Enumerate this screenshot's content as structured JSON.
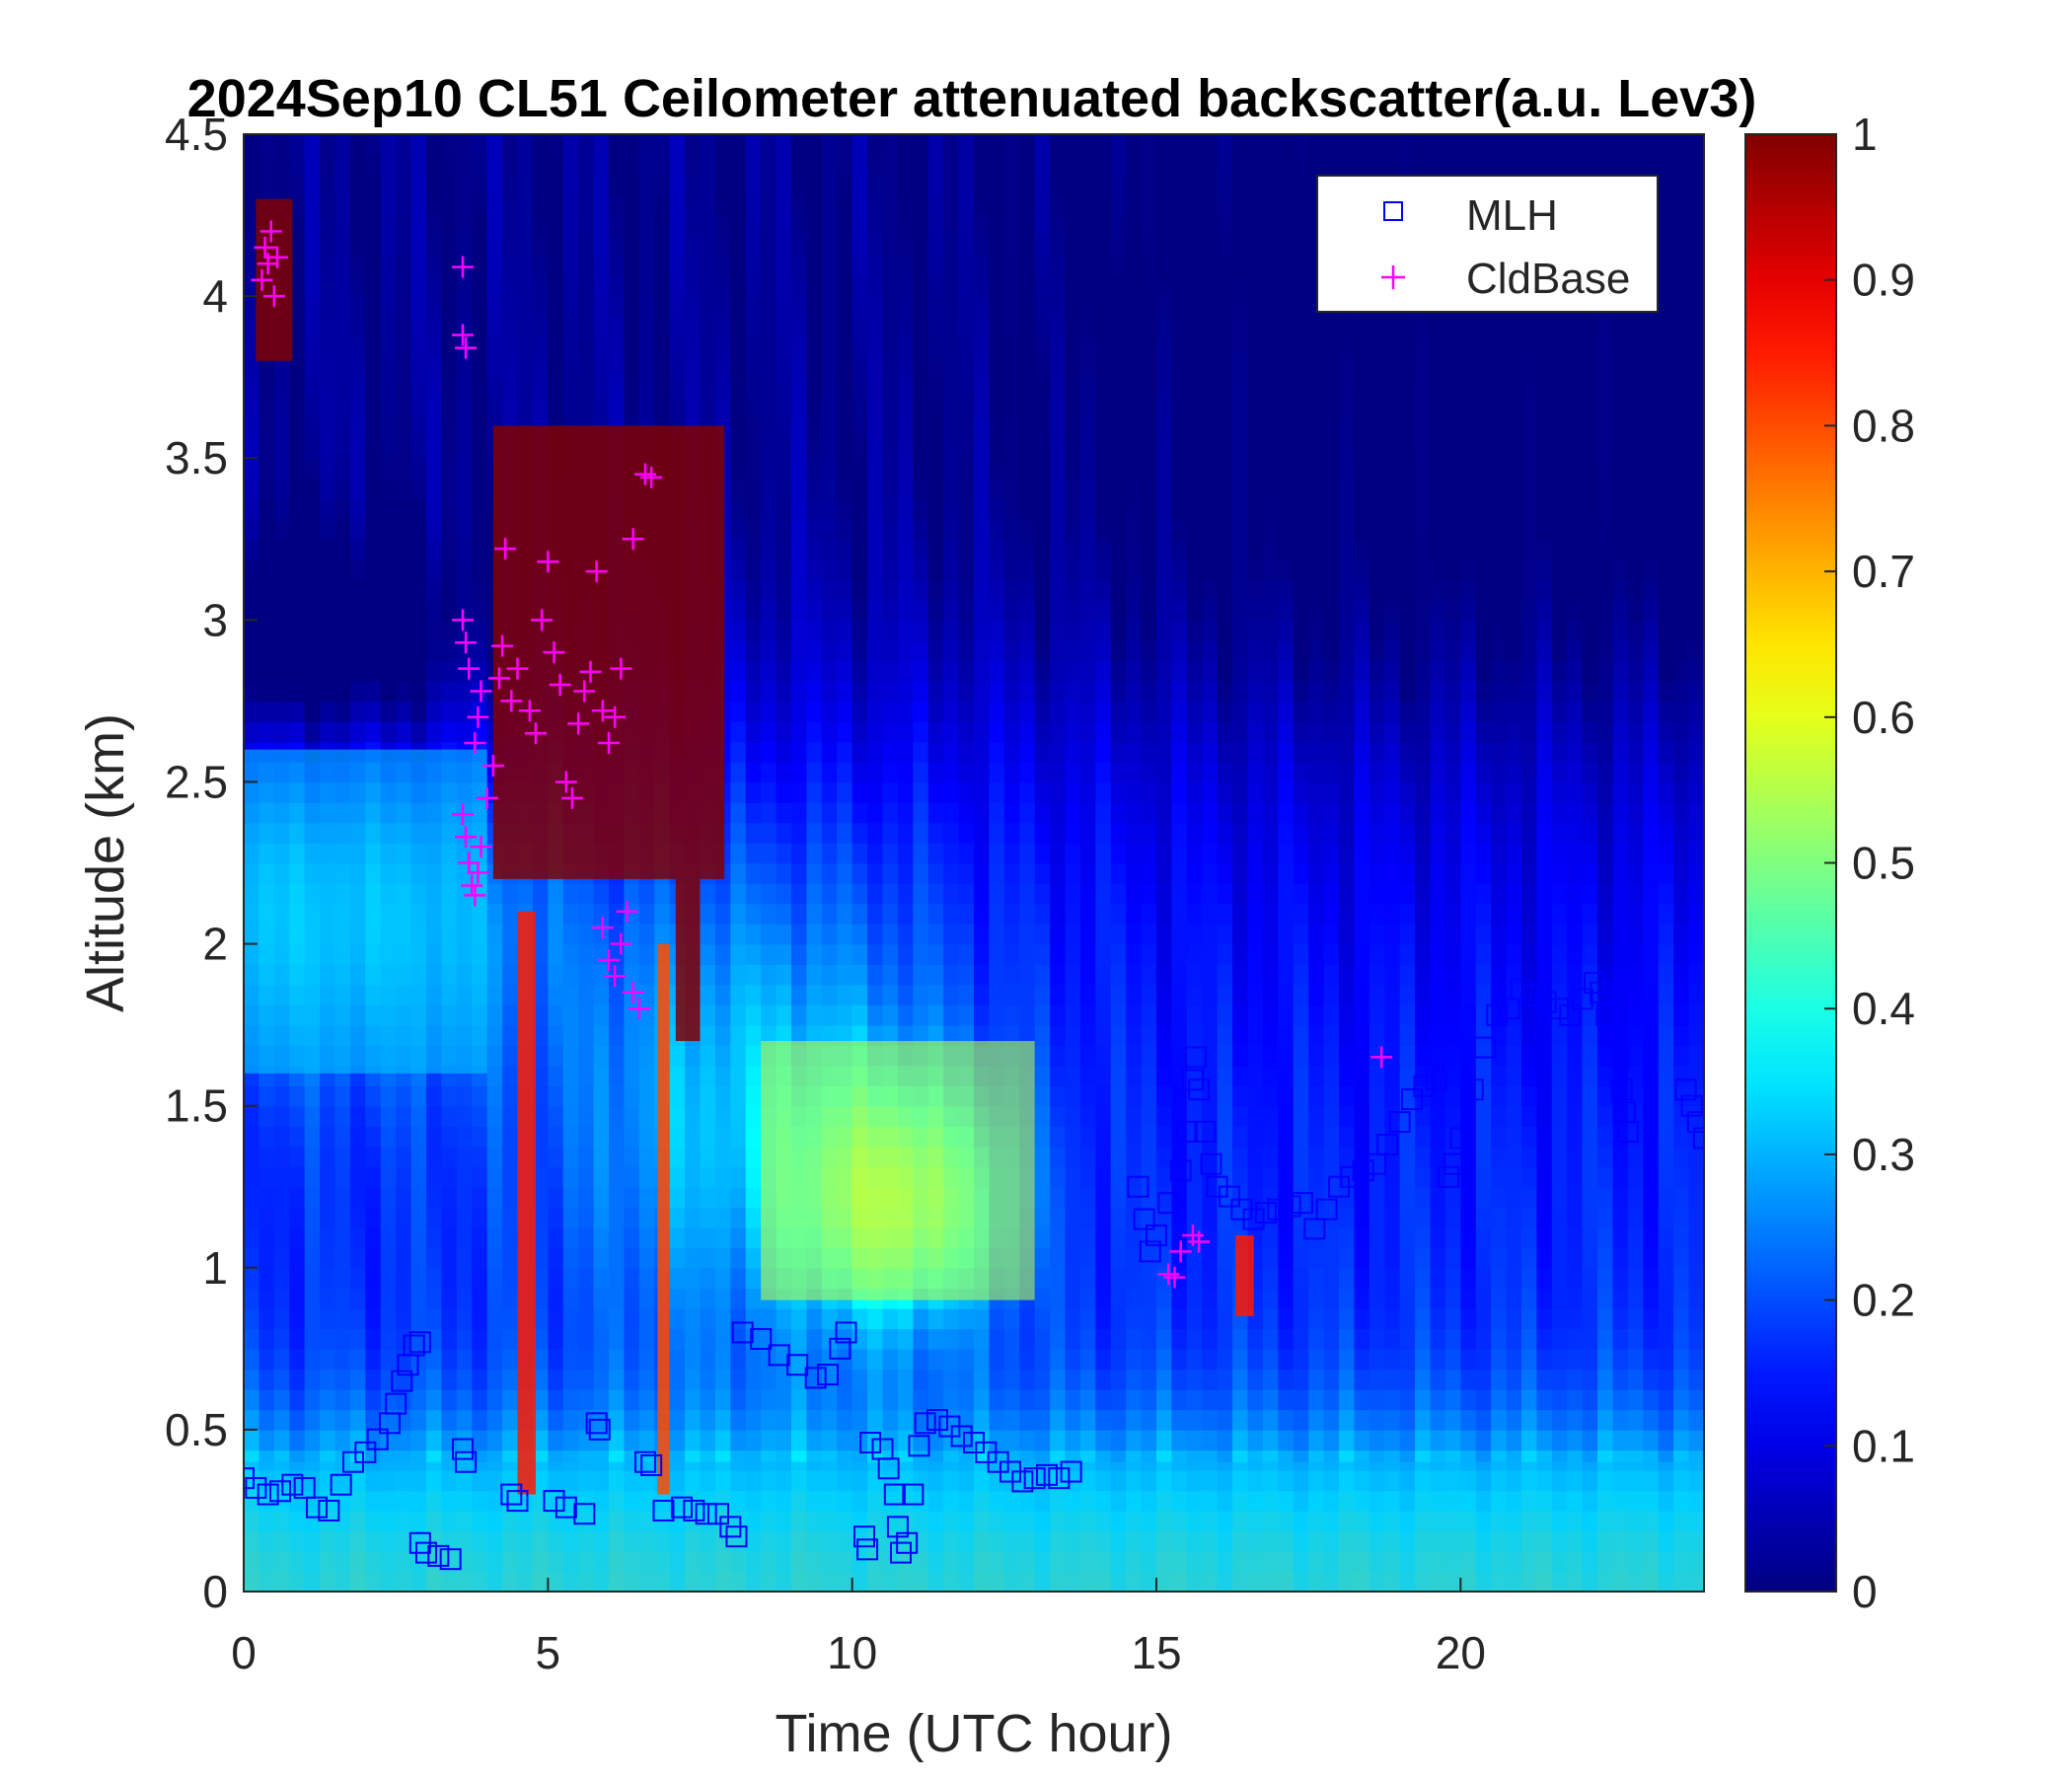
{
  "chart_data": {
    "type": "heatmap",
    "title": "2024Sep10 CL51 Ceilometer attenuated backscatter(a.u. Lev3)",
    "xlabel": "Time (UTC hour)",
    "ylabel": "Altitude (km)",
    "xlim": [
      0,
      24
    ],
    "ylim": [
      0,
      4.5
    ],
    "x_ticks": [
      0,
      5,
      10,
      15,
      20
    ],
    "x_tick_labels": [
      "0",
      "5",
      "10",
      "15",
      "20"
    ],
    "y_ticks": [
      0,
      0.5,
      1,
      1.5,
      2,
      2.5,
      3,
      3.5,
      4,
      4.5
    ],
    "y_tick_labels": [
      "0",
      "0.5",
      "1",
      "1.5",
      "2",
      "2.5",
      "3",
      "3.5",
      "4",
      "4.5"
    ],
    "colorbar": {
      "colormap": "jet",
      "clim": [
        0,
        1
      ],
      "ticks": [
        0,
        0.1,
        0.2,
        0.3,
        0.4,
        0.5,
        0.6,
        0.7,
        0.8,
        0.9,
        1
      ],
      "tick_labels": [
        "0",
        "0.1",
        "0.2",
        "0.3",
        "0.4",
        "0.5",
        "0.6",
        "0.7",
        "0.8",
        "0.9",
        "1"
      ]
    },
    "legend": {
      "position": "top-right",
      "entries": [
        {
          "name": "MLH",
          "marker": "square",
          "color": "#0000ff"
        },
        {
          "name": "CldBase",
          "marker": "plus",
          "color": "#ff00ff"
        }
      ]
    },
    "grid": false,
    "backscatter_features": [
      {
        "feature": "surface layer",
        "x": [
          0,
          24
        ],
        "y": [
          0,
          0.4
        ],
        "value": 0.3
      },
      {
        "feature": "aerosol layer",
        "x": [
          0,
          4
        ],
        "y": [
          1.6,
          2.6
        ],
        "value": 0.32
      },
      {
        "feature": "aerosol maximum",
        "x": [
          8.5,
          13
        ],
        "y": [
          0.9,
          1.7
        ],
        "value": 0.55
      },
      {
        "feature": "cloud",
        "x": [
          0.2,
          0.8
        ],
        "y": [
          3.8,
          4.3
        ],
        "value": 1.0
      },
      {
        "feature": "cloud",
        "x": [
          4.1,
          7.9
        ],
        "y": [
          2.2,
          3.6
        ],
        "value": 1.0
      },
      {
        "feature": "cloud",
        "x": [
          7.1,
          7.5
        ],
        "y": [
          1.7,
          2.2
        ],
        "value": 1.0
      },
      {
        "feature": "precipitation streak",
        "x": [
          4.5,
          4.8
        ],
        "y": [
          0.3,
          2.1
        ],
        "value": 0.85
      },
      {
        "feature": "precipitation streak",
        "x": [
          6.8,
          7.0
        ],
        "y": [
          0.3,
          2.0
        ],
        "value": 0.8
      },
      {
        "feature": "cloud",
        "x": [
          16.3,
          16.6
        ],
        "y": [
          0.85,
          1.1
        ],
        "value": 0.85
      }
    ],
    "series": [
      {
        "name": "MLH",
        "marker": "square",
        "color": "#0000ff",
        "points": [
          [
            0.0,
            0.35
          ],
          [
            0.2,
            0.32
          ],
          [
            0.4,
            0.3
          ],
          [
            0.6,
            0.31
          ],
          [
            0.8,
            0.33
          ],
          [
            1.0,
            0.32
          ],
          [
            1.2,
            0.26
          ],
          [
            1.4,
            0.25
          ],
          [
            1.6,
            0.33
          ],
          [
            1.8,
            0.4
          ],
          [
            2.0,
            0.43
          ],
          [
            2.2,
            0.47
          ],
          [
            2.4,
            0.52
          ],
          [
            2.5,
            0.58
          ],
          [
            2.6,
            0.65
          ],
          [
            2.7,
            0.7
          ],
          [
            2.8,
            0.76
          ],
          [
            2.9,
            0.77
          ],
          [
            2.9,
            0.15
          ],
          [
            3.0,
            0.12
          ],
          [
            3.2,
            0.11
          ],
          [
            3.4,
            0.1
          ],
          [
            3.6,
            0.44
          ],
          [
            3.65,
            0.4
          ],
          [
            4.4,
            0.3
          ],
          [
            4.5,
            0.28
          ],
          [
            5.1,
            0.28
          ],
          [
            5.3,
            0.26
          ],
          [
            5.6,
            0.24
          ],
          [
            5.8,
            0.52
          ],
          [
            5.85,
            0.5
          ],
          [
            6.6,
            0.4
          ],
          [
            6.7,
            0.39
          ],
          [
            6.9,
            0.25
          ],
          [
            7.2,
            0.26
          ],
          [
            7.4,
            0.25
          ],
          [
            7.6,
            0.24
          ],
          [
            7.8,
            0.24
          ],
          [
            8.0,
            0.2
          ],
          [
            8.1,
            0.17
          ],
          [
            8.2,
            0.8
          ],
          [
            8.5,
            0.78
          ],
          [
            8.8,
            0.73
          ],
          [
            9.1,
            0.7
          ],
          [
            9.4,
            0.66
          ],
          [
            9.6,
            0.67
          ],
          [
            9.8,
            0.75
          ],
          [
            9.9,
            0.8
          ],
          [
            10.2,
            0.17
          ],
          [
            10.25,
            0.13
          ],
          [
            10.3,
            0.46
          ],
          [
            10.5,
            0.44
          ],
          [
            10.6,
            0.38
          ],
          [
            10.7,
            0.3
          ],
          [
            10.75,
            0.2
          ],
          [
            10.8,
            0.12
          ],
          [
            10.9,
            0.15
          ],
          [
            11.0,
            0.3
          ],
          [
            11.1,
            0.45
          ],
          [
            11.2,
            0.52
          ],
          [
            11.4,
            0.53
          ],
          [
            11.6,
            0.51
          ],
          [
            11.8,
            0.48
          ],
          [
            12.0,
            0.46
          ],
          [
            12.2,
            0.43
          ],
          [
            12.4,
            0.4
          ],
          [
            12.6,
            0.37
          ],
          [
            12.8,
            0.34
          ],
          [
            13.0,
            0.35
          ],
          [
            13.2,
            0.36
          ],
          [
            13.4,
            0.35
          ],
          [
            13.6,
            0.37
          ],
          [
            14.7,
            1.25
          ],
          [
            14.8,
            1.15
          ],
          [
            14.9,
            1.05
          ],
          [
            15.0,
            1.1
          ],
          [
            15.2,
            1.2
          ],
          [
            15.4,
            1.3
          ],
          [
            15.5,
            1.42
          ],
          [
            15.6,
            1.58
          ],
          [
            15.65,
            1.65
          ],
          [
            15.7,
            1.55
          ],
          [
            15.8,
            1.42
          ],
          [
            15.9,
            1.32
          ],
          [
            16.0,
            1.25
          ],
          [
            16.2,
            1.22
          ],
          [
            16.4,
            1.18
          ],
          [
            16.6,
            1.15
          ],
          [
            16.8,
            1.17
          ],
          [
            17.0,
            1.18
          ],
          [
            17.2,
            1.19
          ],
          [
            17.4,
            1.2
          ],
          [
            17.6,
            1.12
          ],
          [
            17.8,
            1.18
          ],
          [
            18.0,
            1.25
          ],
          [
            18.2,
            1.28
          ],
          [
            18.4,
            1.3
          ],
          [
            18.6,
            1.32
          ],
          [
            18.8,
            1.38
          ],
          [
            19.0,
            1.45
          ],
          [
            19.2,
            1.52
          ],
          [
            19.4,
            1.56
          ],
          [
            19.6,
            1.58
          ],
          [
            19.8,
            1.28
          ],
          [
            19.9,
            1.32
          ],
          [
            20.0,
            1.4
          ],
          [
            20.2,
            1.55
          ],
          [
            20.4,
            1.68
          ],
          [
            20.6,
            1.78
          ],
          [
            20.8,
            1.8
          ],
          [
            21.0,
            1.86
          ],
          [
            21.2,
            1.84
          ],
          [
            21.4,
            1.82
          ],
          [
            21.6,
            1.8
          ],
          [
            21.8,
            1.78
          ],
          [
            22.0,
            1.83
          ],
          [
            22.2,
            1.88
          ],
          [
            22.3,
            1.85
          ],
          [
            22.4,
            1.78
          ],
          [
            22.5,
            1.72
          ],
          [
            22.6,
            1.65
          ],
          [
            22.65,
            1.55
          ],
          [
            22.7,
            1.48
          ],
          [
            22.75,
            1.42
          ],
          [
            23.7,
            1.55
          ],
          [
            23.8,
            1.5
          ],
          [
            23.9,
            1.45
          ],
          [
            24.0,
            1.4
          ]
        ]
      },
      {
        "name": "CldBase",
        "marker": "plus",
        "color": "#ff00ff",
        "points": [
          [
            0.3,
            4.05
          ],
          [
            0.35,
            4.15
          ],
          [
            0.4,
            4.1
          ],
          [
            0.45,
            4.2
          ],
          [
            0.5,
            4.0
          ],
          [
            0.55,
            4.12
          ],
          [
            3.6,
            4.09
          ],
          [
            3.6,
            3.88
          ],
          [
            3.65,
            3.84
          ],
          [
            3.6,
            3.0
          ],
          [
            3.65,
            2.93
          ],
          [
            3.7,
            2.85
          ],
          [
            3.6,
            2.4
          ],
          [
            3.65,
            2.33
          ],
          [
            3.7,
            2.25
          ],
          [
            3.75,
            2.18
          ],
          [
            3.8,
            2.15
          ],
          [
            3.85,
            2.22
          ],
          [
            3.9,
            2.3
          ],
          [
            3.8,
            2.62
          ],
          [
            3.85,
            2.7
          ],
          [
            3.9,
            2.78
          ],
          [
            4.0,
            2.45
          ],
          [
            4.1,
            2.55
          ],
          [
            4.2,
            2.82
          ],
          [
            4.25,
            2.92
          ],
          [
            4.3,
            3.22
          ],
          [
            4.4,
            2.75
          ],
          [
            4.5,
            2.85
          ],
          [
            4.7,
            2.72
          ],
          [
            4.8,
            2.65
          ],
          [
            4.9,
            3.0
          ],
          [
            5.0,
            3.18
          ],
          [
            5.1,
            2.9
          ],
          [
            5.2,
            2.8
          ],
          [
            5.3,
            2.5
          ],
          [
            5.4,
            2.45
          ],
          [
            5.5,
            2.68
          ],
          [
            5.6,
            2.78
          ],
          [
            5.7,
            2.84
          ],
          [
            5.8,
            3.15
          ],
          [
            5.9,
            2.72
          ],
          [
            6.0,
            2.62
          ],
          [
            6.1,
            2.7
          ],
          [
            6.2,
            2.85
          ],
          [
            6.4,
            3.25
          ],
          [
            6.6,
            3.45
          ],
          [
            6.7,
            3.44
          ],
          [
            5.9,
            2.05
          ],
          [
            6.0,
            1.95
          ],
          [
            6.1,
            1.9
          ],
          [
            6.2,
            2.0
          ],
          [
            6.3,
            2.1
          ],
          [
            6.4,
            1.85
          ],
          [
            6.5,
            1.8
          ],
          [
            15.2,
            0.98
          ],
          [
            15.3,
            0.97
          ],
          [
            15.4,
            1.05
          ],
          [
            15.6,
            1.1
          ],
          [
            15.7,
            1.08
          ],
          [
            18.7,
            1.65
          ]
        ]
      }
    ]
  }
}
